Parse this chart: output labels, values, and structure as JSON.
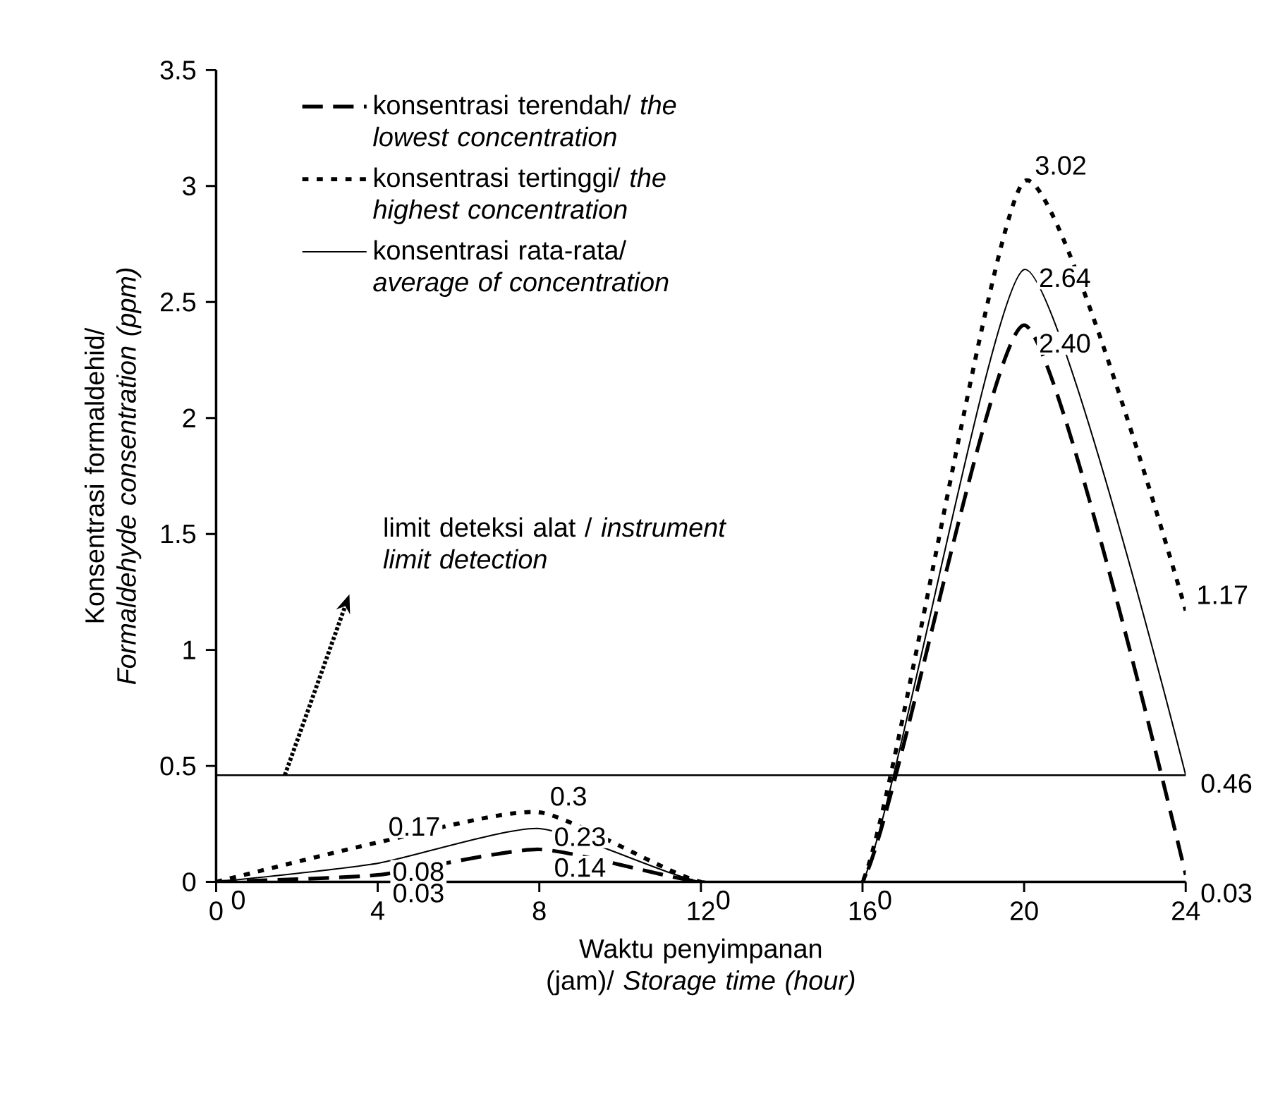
{
  "chart_data": {
    "type": "line",
    "xlabel": "Waktu penyimpanan (jam)/ *Storage time (hour)*",
    "ylabel": "Konsentrasi formaldehid/ *Formaldehyde consentration (ppm)*",
    "x": [
      0,
      4,
      8,
      12,
      16,
      20,
      24
    ],
    "series": [
      {
        "name": "konsentrasi terendah/ *the lowest concentration*",
        "color": "#000000",
        "line_style": "dashed",
        "values": [
          0,
          0.03,
          0.14,
          0,
          0,
          2.4,
          0.03
        ],
        "value_labels": [
          "0",
          "0.03",
          "0.14",
          "0",
          "0",
          "2.40",
          "0.03"
        ]
      },
      {
        "name": "konsentrasi tertinggi/ *the highest concentration*",
        "color": "#000000",
        "line_style": "dotted",
        "values": [
          0,
          0.17,
          0.3,
          0,
          0,
          3.02,
          1.17
        ],
        "value_labels": [
          null,
          "0.17",
          "0.3",
          null,
          null,
          "3.02",
          "1.17"
        ]
      },
      {
        "name": "konsentrasi rata-rata/ *average of concentration*",
        "color": "#000000",
        "line_style": "solid",
        "values": [
          0,
          0.08,
          0.23,
          0,
          0,
          2.64,
          0.46
        ],
        "value_labels": [
          null,
          "0.08",
          "0.23",
          null,
          null,
          "2.64",
          "0.46"
        ]
      }
    ],
    "ref_lines": [
      {
        "axis": "y",
        "value": 0.46,
        "label": "limit deteksi alat / *instrument limit detection*",
        "color": "#000000",
        "line_style": "solid"
      }
    ],
    "xlim": [
      0,
      24
    ],
    "xticks": [
      0,
      4,
      8,
      12,
      16,
      20,
      24
    ],
    "ylim": [
      0,
      3.5
    ],
    "yticks": [
      0,
      0.5,
      1,
      1.5,
      2,
      2.5,
      3,
      3.5
    ],
    "legend": "top left",
    "grid": false,
    "marker": "none"
  }
}
